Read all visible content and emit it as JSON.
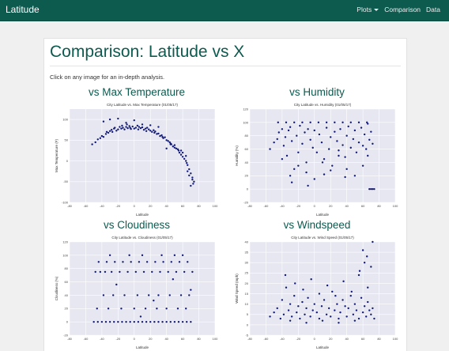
{
  "navbar": {
    "brand": "Latitude",
    "items": [
      {
        "label": "Plots",
        "dropdown": true
      },
      {
        "label": "Comparison"
      },
      {
        "label": "Data"
      }
    ]
  },
  "page": {
    "title": "Comparison: Latitude vs X",
    "intro": "Click on any image for an in-depth analysis."
  },
  "colors": {
    "accent": "#0d5a4f",
    "plot_bg": "#e6e7f0",
    "marker": "#131a7a"
  },
  "cards": [
    {
      "heading": "vs Max Temperature"
    },
    {
      "heading": "vs Humidity"
    },
    {
      "heading": "vs Cloudiness"
    },
    {
      "heading": "vs Windspeed"
    }
  ],
  "chart_data": [
    {
      "type": "scatter",
      "title": "City Latitude vs. Max Temperature (01/05/17)",
      "xlabel": "Latitude",
      "ylabel": "Max Temperature (F)",
      "xlim": [
        -80,
        100
      ],
      "ylim": [
        -100,
        125
      ],
      "xticks": [
        -80,
        -60,
        -40,
        -20,
        0,
        20,
        40,
        60,
        80,
        100
      ],
      "yticks": [
        -100,
        -50,
        0,
        50,
        100
      ],
      "grid": true,
      "x": [
        -52,
        -48,
        -45,
        -42,
        -40,
        -38,
        -35,
        -34,
        -32,
        -30,
        -28,
        -27,
        -25,
        -24,
        -22,
        -20,
        -18,
        -16,
        -15,
        -14,
        -12,
        -10,
        -9,
        -8,
        -6,
        -5,
        -4,
        -2,
        0,
        2,
        4,
        5,
        6,
        8,
        10,
        12,
        14,
        15,
        16,
        18,
        20,
        22,
        24,
        25,
        26,
        28,
        30,
        32,
        34,
        35,
        36,
        38,
        40,
        42,
        44,
        45,
        46,
        48,
        50,
        52,
        54,
        55,
        56,
        58,
        60,
        62,
        64,
        65,
        66,
        68,
        70,
        72,
        74,
        70,
        68,
        66,
        72,
        73,
        60,
        64,
        58,
        50,
        45,
        40,
        -38,
        -30,
        -20,
        -10,
        0,
        10,
        20,
        30
      ],
      "y": [
        40,
        45,
        52,
        55,
        60,
        58,
        65,
        70,
        68,
        72,
        75,
        70,
        78,
        80,
        73,
        76,
        82,
        78,
        85,
        80,
        76,
        82,
        88,
        79,
        84,
        80,
        77,
        83,
        78,
        80,
        85,
        76,
        82,
        79,
        81,
        75,
        78,
        72,
        80,
        76,
        73,
        70,
        74,
        68,
        71,
        65,
        66,
        60,
        62,
        58,
        55,
        57,
        50,
        48,
        45,
        42,
        40,
        35,
        38,
        30,
        28,
        25,
        20,
        15,
        10,
        5,
        0,
        -5,
        -10,
        -20,
        -30,
        -40,
        -50,
        -60,
        -35,
        -25,
        -45,
        -55,
        20,
        12,
        25,
        32,
        40,
        30,
        95,
        100,
        102,
        92,
        98,
        88,
        86,
        82
      ]
    },
    {
      "type": "scatter",
      "title": "City Latitude vs. Humidity (01/05/17)",
      "xlabel": "Latitude",
      "ylabel": "Humidity (%)",
      "xlim": [
        -80,
        100
      ],
      "ylim": [
        -20,
        120
      ],
      "xticks": [
        -80,
        -60,
        -40,
        -20,
        0,
        20,
        40,
        60,
        80,
        100
      ],
      "yticks": [
        -20,
        0,
        20,
        40,
        60,
        80,
        100,
        120
      ],
      "grid": true,
      "x": [
        -55,
        -50,
        -46,
        -44,
        -40,
        -38,
        -36,
        -34,
        -32,
        -30,
        -28,
        -25,
        -22,
        -20,
        -18,
        -15,
        -12,
        -10,
        -8,
        -5,
        -2,
        0,
        3,
        6,
        9,
        12,
        15,
        18,
        20,
        22,
        25,
        28,
        30,
        32,
        35,
        38,
        40,
        42,
        45,
        48,
        50,
        52,
        55,
        58,
        60,
        62,
        64,
        66,
        68,
        70,
        72,
        -45,
        -35,
        -25,
        -15,
        -5,
        5,
        15,
        25,
        35,
        45,
        55,
        65,
        -40,
        -30,
        -20,
        -10,
        0,
        10,
        20,
        30,
        40,
        50,
        60,
        -28,
        -8,
        12,
        38,
        66,
        68,
        70,
        72,
        74
      ],
      "y": [
        60,
        70,
        75,
        85,
        90,
        65,
        78,
        50,
        88,
        93,
        72,
        30,
        80,
        55,
        95,
        68,
        85,
        40,
        90,
        74,
        62,
        88,
        55,
        82,
        70,
        45,
        92,
        60,
        78,
        35,
        86,
        72,
        58,
        90,
        66,
        48,
        80,
        94,
        62,
        75,
        88,
        55,
        70,
        92,
        65,
        82,
        60,
        50,
        74,
        86,
        68,
        100,
        100,
        100,
        100,
        100,
        100,
        100,
        100,
        100,
        100,
        100,
        100,
        45,
        20,
        35,
        25,
        15,
        40,
        28,
        50,
        30,
        20,
        35,
        10,
        5,
        22,
        18,
        98,
        0,
        0,
        0,
        0
      ]
    },
    {
      "type": "scatter",
      "title": "City Latitude vs. Cloudiness (01/05/17)",
      "xlabel": "Latitude",
      "ylabel": "Cloudiness (%)",
      "xlim": [
        -80,
        100
      ],
      "ylim": [
        -20,
        120
      ],
      "xticks": [
        -80,
        -60,
        -40,
        -20,
        0,
        20,
        40,
        60,
        80,
        100
      ],
      "yticks": [
        -20,
        0,
        20,
        40,
        60,
        80,
        100,
        120
      ],
      "grid": true,
      "x": [
        -50,
        -45,
        -40,
        -35,
        -30,
        -25,
        -20,
        -15,
        -10,
        -5,
        0,
        5,
        10,
        15,
        20,
        25,
        30,
        35,
        40,
        45,
        50,
        55,
        60,
        65,
        70,
        -48,
        -42,
        -36,
        -28,
        -18,
        -8,
        2,
        12,
        22,
        32,
        42,
        52,
        62,
        72,
        -44,
        -34,
        -24,
        -14,
        -4,
        6,
        16,
        26,
        36,
        46,
        56,
        66,
        -38,
        -26,
        -12,
        4,
        18,
        30,
        44,
        58,
        68,
        -46,
        -32,
        -16,
        0,
        14,
        28,
        40,
        54,
        64,
        -30,
        -6,
        10,
        34,
        50,
        60,
        -22,
        8,
        24,
        48,
        70
      ],
      "y": [
        0,
        0,
        0,
        0,
        0,
        0,
        0,
        0,
        0,
        0,
        0,
        0,
        0,
        0,
        0,
        0,
        0,
        0,
        0,
        0,
        0,
        0,
        0,
        0,
        0,
        75,
        75,
        75,
        75,
        75,
        75,
        75,
        75,
        75,
        75,
        75,
        75,
        75,
        75,
        90,
        90,
        90,
        90,
        90,
        90,
        90,
        90,
        90,
        90,
        90,
        90,
        40,
        40,
        40,
        40,
        40,
        40,
        40,
        40,
        40,
        20,
        20,
        20,
        20,
        20,
        20,
        20,
        20,
        20,
        100,
        100,
        100,
        100,
        100,
        100,
        56,
        8,
        32,
        64,
        48
      ]
    },
    {
      "type": "scatter",
      "title": "City Latitude vs. Wind Speed (01/05/17)",
      "xlabel": "Latitude",
      "ylabel": "Wind Speed (mph)",
      "xlim": [
        -80,
        100
      ],
      "ylim": [
        -5,
        40
      ],
      "xticks": [
        -80,
        -60,
        -40,
        -20,
        0,
        20,
        40,
        60,
        80,
        100
      ],
      "yticks": [
        -5,
        0,
        5,
        10,
        15,
        20,
        25,
        30,
        35,
        40
      ],
      "grid": true,
      "x": [
        -55,
        -50,
        -46,
        -42,
        -40,
        -38,
        -35,
        -32,
        -30,
        -28,
        -25,
        -22,
        -20,
        -18,
        -15,
        -12,
        -10,
        -8,
        -5,
        -2,
        0,
        3,
        6,
        9,
        12,
        15,
        18,
        20,
        22,
        25,
        28,
        30,
        32,
        35,
        38,
        40,
        42,
        45,
        48,
        50,
        52,
        55,
        58,
        60,
        62,
        64,
        66,
        68,
        70,
        72,
        74,
        -36,
        -24,
        -14,
        -4,
        6,
        16,
        26,
        36,
        46,
        56,
        66,
        -30,
        -10,
        10,
        30,
        50,
        60,
        65,
        70,
        72,
        55,
        62
      ],
      "y": [
        4,
        6,
        8,
        3,
        12,
        5,
        18,
        7,
        10,
        4,
        14,
        6,
        9,
        3,
        11,
        5,
        8,
        13,
        4,
        7,
        10,
        6,
        3,
        9,
        12,
        5,
        8,
        4,
        16,
        7,
        10,
        3,
        6,
        12,
        9,
        4,
        8,
        14,
        5,
        10,
        7,
        3,
        13,
        6,
        9,
        4,
        11,
        7,
        5,
        8,
        3,
        24,
        20,
        17,
        22,
        15,
        19,
        14,
        21,
        16,
        26,
        18,
        2,
        1,
        2,
        1,
        2,
        36,
        33,
        28,
        40,
        24,
        30
      ]
    }
  ]
}
